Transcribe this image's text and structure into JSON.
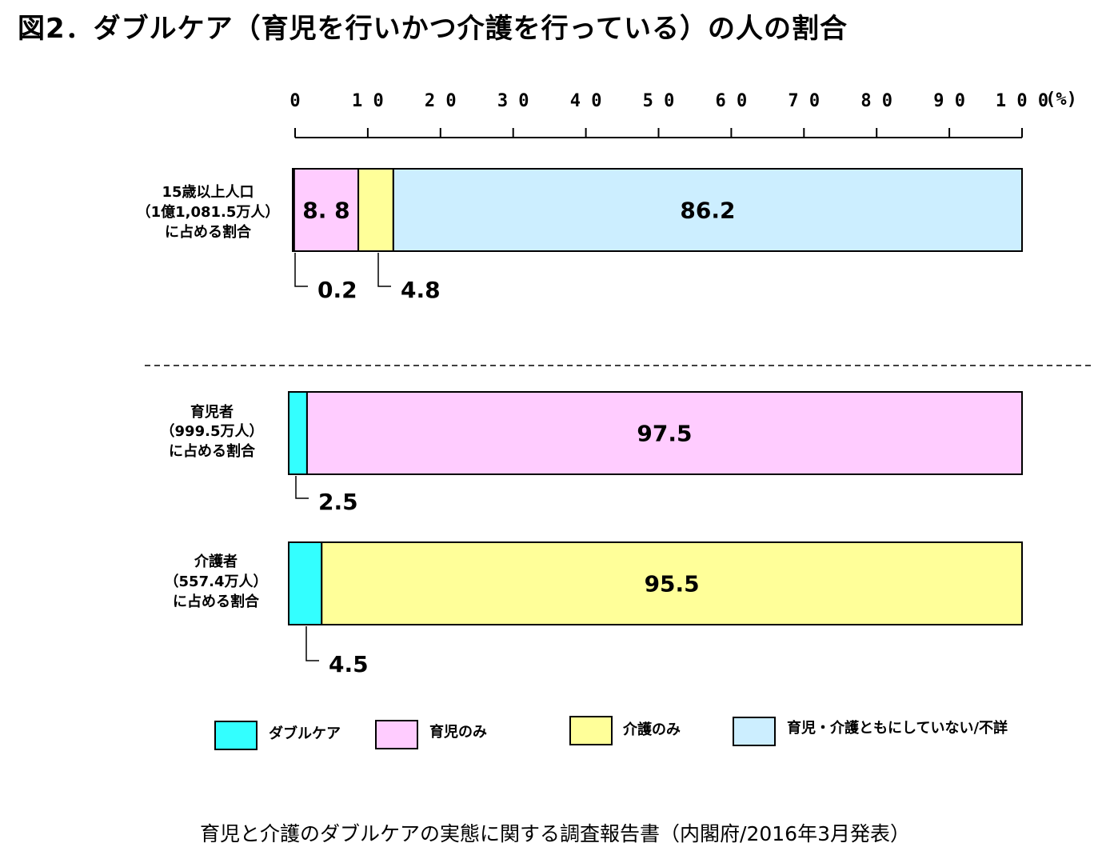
{
  "title": "図2．ダブルケア（育児を行いかつ介護を行っている）の人の割合",
  "footer": "育児と介護のダブルケアの実態に関する調査報告書（内閣府/2016年3月発表）",
  "colors": {
    "double_care": "#33ffff",
    "childcare_only": "#ffccff",
    "nursing_only": "#ffff99",
    "neither": "#cceeff",
    "border": "#000000"
  },
  "chart_data": {
    "type": "bar",
    "orientation": "horizontal",
    "stacked": true,
    "title": "図2．ダブルケア（育児を行いかつ介護を行っている）の人の割合",
    "xlim": [
      0,
      100
    ],
    "x_ticks": [
      "0",
      "10",
      "20",
      "30",
      "40",
      "50",
      "60",
      "70",
      "80",
      "90",
      "100"
    ],
    "x_unit": "(%)",
    "legend": [
      "ダブルケア",
      "育児のみ",
      "介護のみ",
      "育児・介護ともにしていない/不詳"
    ],
    "legend_position": "bottom",
    "groups": [
      {
        "label_lines": [
          "15歳以上人口",
          "（1億1,081.5万人）",
          "に占める割合"
        ],
        "segments": [
          {
            "series": "ダブルケア",
            "value": 0.2,
            "label": "0.2"
          },
          {
            "series": "育児のみ",
            "value": 8.8,
            "label": "8.8"
          },
          {
            "series": "介護のみ",
            "value": 4.8,
            "label": "4.8"
          },
          {
            "series": "育児・介護ともにしていない/不詳",
            "value": 86.2,
            "label": "86.2"
          }
        ]
      },
      {
        "label_lines": [
          "育児者",
          "（999.5万人）",
          "に占める割合"
        ],
        "segments": [
          {
            "series": "ダブルケア",
            "value": 2.5,
            "label": "2.5"
          },
          {
            "series": "育児のみ",
            "value": 97.5,
            "label": "97.5"
          }
        ]
      },
      {
        "label_lines": [
          "介護者",
          "（557.4万人）",
          "に占める割合"
        ],
        "segments": [
          {
            "series": "ダブルケア",
            "value": 4.5,
            "label": "4.5"
          },
          {
            "series": "介護のみ",
            "value": 95.5,
            "label": "95.5"
          }
        ]
      }
    ]
  }
}
